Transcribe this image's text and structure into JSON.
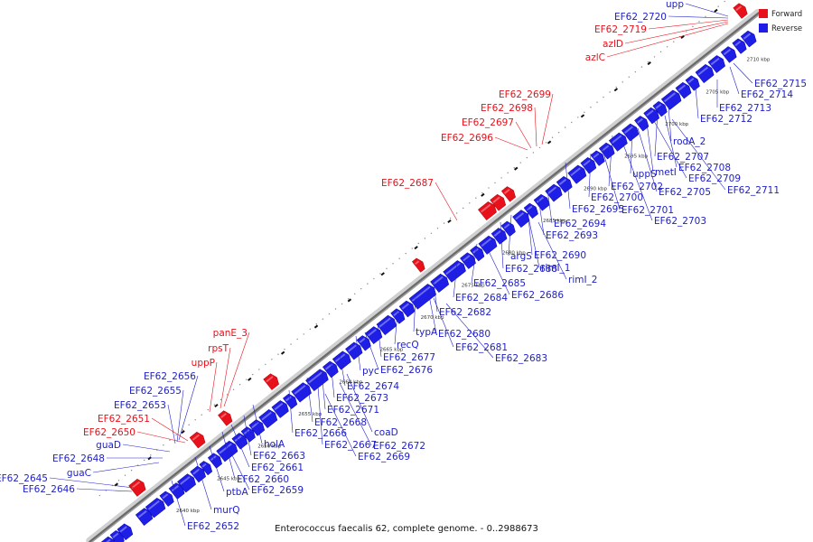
{
  "caption": "Enterococcus faecalis 62, complete genome. - 0..2988673",
  "legend": {
    "forward_label": "Forward",
    "reverse_label": "Reverse",
    "forward_color": "#e8101a",
    "reverse_color": "#1e1ee6"
  },
  "ticks": [
    "2640 kbp",
    "2645 kbp",
    "2650 kbp",
    "2655 kbp",
    "2660 kbp",
    "2665 kbp",
    "2670 kbp",
    "2675 kbp",
    "2680 kbp",
    "2685 kbp",
    "2690 kbp",
    "2695 kbp",
    "2700 kbp",
    "2705 kbp",
    "2710 kbp"
  ],
  "forward_labels": [
    "upp",
    "EF62_2720",
    "EF62_2719",
    "azlD",
    "azlC",
    "EF62_2699",
    "EF62_2698",
    "EF62_2697",
    "EF62_2696",
    "EF62_2687",
    "panE_3",
    "rpsT",
    "uppP",
    "EF62_2651",
    "EF62_2650"
  ],
  "reverse_left_labels": [
    "EF62_2656",
    "EF62_2655",
    "EF62_2653",
    "guaD",
    "EF62_2648",
    "guaC",
    "EF62_2645",
    "EF62_2646"
  ],
  "reverse_right_labels": [
    "EF62_2715",
    "EF62_2714",
    "EF62_2713",
    "EF62_2712",
    "rodA_2",
    "EF62_2707",
    "EF62_2708",
    "metI",
    "EF62_2709",
    "uppS",
    "EF62_2711",
    "EF62_2702",
    "EF62_2705",
    "EF62_2700",
    "EF62_2701",
    "EF62_2695",
    "EF62_2703",
    "EF62_2694",
    "EF62_2693",
    "argS",
    "EF62_2690",
    "EF62_2688",
    "rimI_1",
    "rimI_2",
    "EF62_2685",
    "EF62_2686",
    "EF62_2684",
    "EF62_2682",
    "typA",
    "EF62_2680",
    "recQ",
    "EF62_2681",
    "EF62_2677",
    "EF62_2683",
    "pyc",
    "EF62_2676",
    "EF62_2674",
    "EF62_2673",
    "EF62_2671",
    "EF62_2668",
    "coaD",
    "EF62_2666",
    "EF62_2667",
    "EF62_2672",
    "holA",
    "EF62_2669",
    "EF62_2663",
    "EF62_2661",
    "EF62_2660",
    "ptbA",
    "EF62_2659",
    "murQ",
    "EF62_2652"
  ]
}
